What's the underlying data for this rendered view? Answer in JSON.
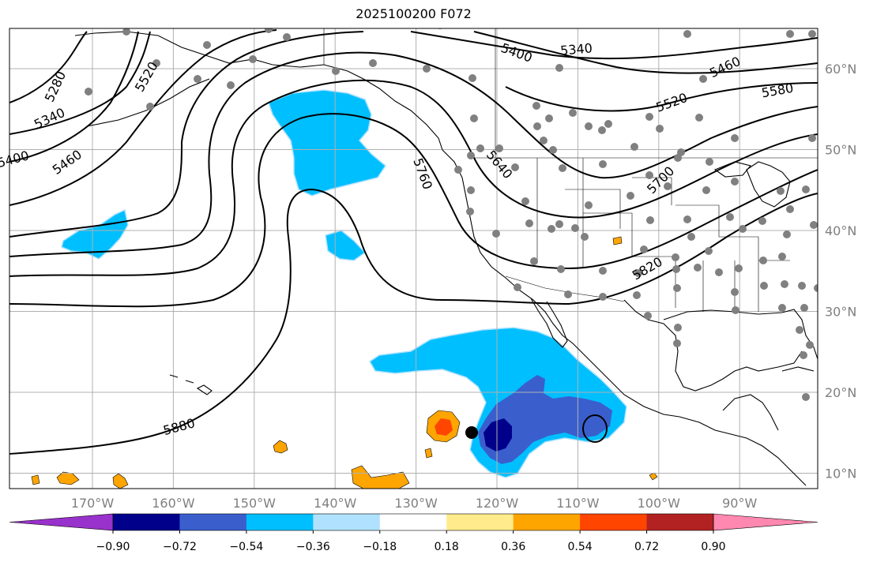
{
  "title": "2025100200 F072",
  "map": {
    "lon_ticks": [
      {
        "lon": -170,
        "label": "170°W"
      },
      {
        "lon": -160,
        "label": "160°W"
      },
      {
        "lon": -150,
        "label": "150°W"
      },
      {
        "lon": -140,
        "label": "140°W"
      },
      {
        "lon": -130,
        "label": "130°W"
      },
      {
        "lon": -120,
        "label": "120°W"
      },
      {
        "lon": -110,
        "label": "110°W"
      },
      {
        "lon": -100,
        "label": "100°W"
      },
      {
        "lon": -90,
        "label": "90°W"
      }
    ],
    "lat_ticks": [
      {
        "lat": 60,
        "label": "60°N"
      },
      {
        "lat": 50,
        "label": "50°N"
      },
      {
        "lat": 40,
        "label": "40°N"
      },
      {
        "lat": 30,
        "label": "30°N"
      },
      {
        "lat": 20,
        "label": "20°N"
      },
      {
        "lat": 10,
        "label": "10°N"
      }
    ],
    "contour_labels": [
      "5280",
      "5340",
      "5400",
      "5460",
      "5520",
      "5400",
      "5340",
      "5460",
      "5580",
      "5520",
      "5640",
      "5760",
      "5700",
      "5820",
      "5880"
    ],
    "colors": {
      "land_outline": "#000000",
      "grid": "#b0b0b0",
      "station": "#808080",
      "storm_marker": "#000000"
    }
  },
  "colorbar": {
    "ticks": [
      "−0.90",
      "−0.72",
      "−0.54",
      "−0.36",
      "−0.18",
      "0.18",
      "0.36",
      "0.54",
      "0.72",
      "0.90"
    ],
    "colors": [
      "#9932cc",
      "#00008b",
      "#3a5fcd",
      "#00bfff",
      "#b0e2ff",
      "#ffffff",
      "#ffeb8c",
      "#ffa500",
      "#ff4500",
      "#b22222",
      "#ff88b0"
    ]
  }
}
